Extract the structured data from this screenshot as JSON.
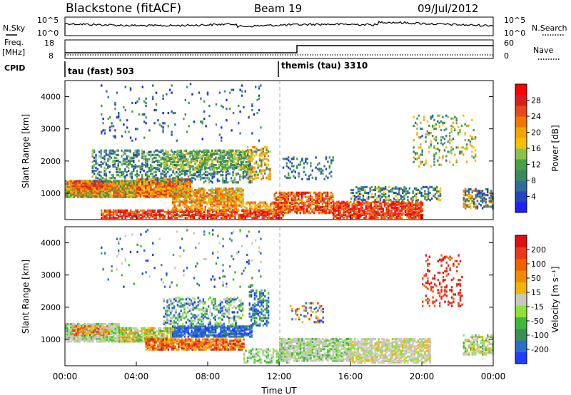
{
  "header": {
    "station": "Blackstone (fitACF)",
    "beam": "Beam 19",
    "date": "09/Jul/2012"
  },
  "top_panels": {
    "nsky_label": "N.Sky",
    "nsky_ticks": [
      "10^5",
      "10^0"
    ],
    "nsearch_label": "N.Search",
    "nsearch_ticks": [
      "10^5",
      "10^0"
    ],
    "freq_label": "Freq.",
    "freq_unit": "[MHz]",
    "freq_ticks": [
      "18",
      "8"
    ],
    "nave_label": "Nave",
    "nave_ticks": [
      "60",
      "0"
    ],
    "cpid_label": "CPID",
    "cpid_segments": [
      {
        "label": "tau (fast) 503",
        "start_ut": 0
      },
      {
        "label": "themis (tau) 3310",
        "start_ut": 12
      }
    ]
  },
  "chart_data": [
    {
      "type": "heatmap",
      "name": "power",
      "ylabel": "Slant Range [km]",
      "ylim": [
        180,
        4500
      ],
      "yticks": [
        "4000",
        "3000",
        "2000",
        "1000"
      ],
      "xlim": [
        0,
        24
      ],
      "colorbar_label": "Power [dB]",
      "colorbar_ticks": [
        "28",
        "24",
        "20",
        "16",
        "12",
        "8",
        "4"
      ],
      "colorbar_colors": [
        "#1f1fff",
        "#2545b8",
        "#2f6e9c",
        "#3b8a5c",
        "#4aa048",
        "#8bc34a",
        "#f2c200",
        "#f5a300",
        "#f07800",
        "#e84a1c",
        "#d81f1f",
        "#ff0000"
      ]
    },
    {
      "type": "heatmap",
      "name": "velocity",
      "ylabel": "Slant Range [km]",
      "ylim": [
        180,
        4500
      ],
      "yticks": [
        "4000",
        "3000",
        "2000",
        "1000"
      ],
      "xlim": [
        0,
        24
      ],
      "xlabel": "Time UT",
      "xticks": [
        "00:00",
        "04:00",
        "08:00",
        "12:00",
        "16:00",
        "20:00",
        "00:00"
      ],
      "colorbar_label": "Velocity [m s⁻¹]",
      "colorbar_ticks": [
        "200",
        "100",
        "50",
        "15",
        "-15",
        "-50",
        "-100",
        "-200"
      ],
      "colorbar_colors": [
        "#1f3fff",
        "#2a6ec8",
        "#3a8f57",
        "#3fb83a",
        "#8fe03a",
        "#c8c8c0",
        "#f2b400",
        "#f08c00",
        "#f06000",
        "#e83a1a",
        "#e01010"
      ]
    }
  ]
}
